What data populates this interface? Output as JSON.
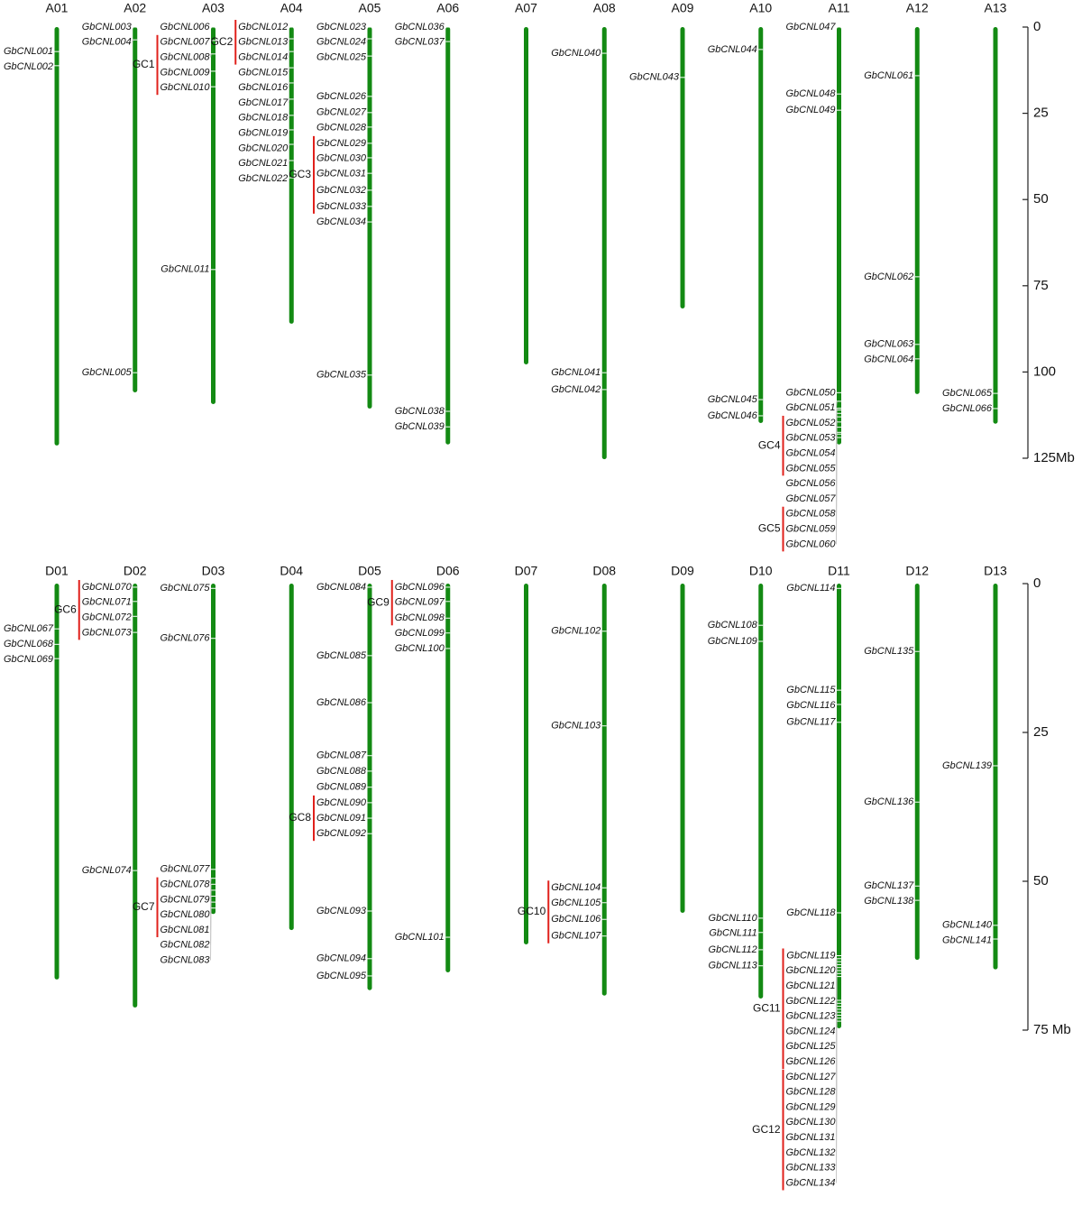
{
  "chart_data": [
    {
      "type": "chromosome-map",
      "ylim": [
        0,
        125
      ],
      "yticks": [
        0,
        25,
        50,
        75,
        100,
        {
          "value": 125,
          "label": "125Mb"
        }
      ],
      "chromosome_color": "#138a13",
      "cluster_color": "#e0201b",
      "chromosomes": [
        {
          "name": "A01",
          "length": 121.3,
          "genes": [
            {
              "name": "GbCNL001",
              "position": 7.1
            },
            {
              "name": "GbCNL002",
              "position": 11.2
            }
          ]
        },
        {
          "name": "A02",
          "length": 105.9,
          "genes": [
            {
              "name": "GbCNL003",
              "position": 0
            },
            {
              "name": "GbCNL004",
              "position": 3.7
            },
            {
              "name": "GbCNL005",
              "position": 100.2
            }
          ]
        },
        {
          "name": "A03",
          "length": 109.3,
          "genes": [
            {
              "name": "GbCNL006",
              "position": 0
            },
            {
              "name": "GbCNL007",
              "position": 3.9,
              "cluster": "GC1"
            },
            {
              "name": "GbCNL008",
              "position": 7.8,
              "cluster": "GC1"
            },
            {
              "name": "GbCNL009",
              "position": 12.8,
              "cluster": "GC1"
            },
            {
              "name": "GbCNL010",
              "position": 17.3,
              "cluster": "GC1"
            },
            {
              "name": "GbCNL011",
              "position": 70.3
            }
          ]
        },
        {
          "name": "A04",
          "length": 86,
          "genes": [
            {
              "name": "GbCNL012",
              "position": 0,
              "cluster": "GC2"
            },
            {
              "name": "GbCNL013",
              "position": 3.4,
              "cluster": "GC2"
            },
            {
              "name": "GbCNL014",
              "position": 7.1,
              "cluster": "GC2"
            },
            {
              "name": "GbCNL015",
              "position": 11.8
            },
            {
              "name": "GbCNL016",
              "position": 16.2
            },
            {
              "name": "GbCNL017",
              "position": 20.9
            },
            {
              "name": "GbCNL018",
              "position": 25.6
            },
            {
              "name": "GbCNL019",
              "position": 29.8
            },
            {
              "name": "GbCNL020",
              "position": 34
            },
            {
              "name": "GbCNL021",
              "position": 38.7
            },
            {
              "name": "GbCNL022",
              "position": 43.7
            }
          ]
        },
        {
          "name": "A05",
          "length": 110.6,
          "genes": [
            {
              "name": "GbCNL023",
              "position": 0
            },
            {
              "name": "GbCNL024",
              "position": 3.4
            },
            {
              "name": "GbCNL025",
              "position": 8.4
            },
            {
              "name": "GbCNL026",
              "position": 20.1
            },
            {
              "name": "GbCNL027",
              "position": 24.8
            },
            {
              "name": "GbCNL028",
              "position": 29
            },
            {
              "name": "GbCNL029",
              "position": 33.7,
              "cluster": "GC3"
            },
            {
              "name": "GbCNL030",
              "position": 37.9,
              "cluster": "GC3"
            },
            {
              "name": "GbCNL031",
              "position": 42.4,
              "cluster": "GC3"
            },
            {
              "name": "GbCNL032",
              "position": 47.3,
              "cluster": "GC3"
            },
            {
              "name": "GbCNL033",
              "position": 52,
              "cluster": "GC3"
            },
            {
              "name": "GbCNL034",
              "position": 56.5
            },
            {
              "name": "GbCNL035",
              "position": 100.9
            }
          ]
        },
        {
          "name": "A06",
          "length": 121,
          "genes": [
            {
              "name": "GbCNL036",
              "position": 0
            },
            {
              "name": "GbCNL037",
              "position": 4.2
            },
            {
              "name": "GbCNL038",
              "position": 111.4
            },
            {
              "name": "GbCNL039",
              "position": 115.9
            }
          ]
        },
        {
          "name": "A07",
          "length": 97.8,
          "genes": []
        },
        {
          "name": "A08",
          "length": 125.3,
          "genes": [
            {
              "name": "GbCNL040",
              "position": 7.6
            },
            {
              "name": "GbCNL041",
              "position": 100.2
            },
            {
              "name": "GbCNL042",
              "position": 105.1
            }
          ]
        },
        {
          "name": "A09",
          "length": 81.6,
          "genes": [
            {
              "name": "GbCNL043",
              "position": 14.6
            }
          ]
        },
        {
          "name": "A10",
          "length": 114.8,
          "genes": [
            {
              "name": "GbCNL044",
              "position": 6.5
            },
            {
              "name": "GbCNL045",
              "position": 108
            },
            {
              "name": "GbCNL046",
              "position": 112.7
            }
          ]
        },
        {
          "name": "A11",
          "length": 121,
          "genes": [
            {
              "name": "GbCNL047",
              "position": 0
            },
            {
              "name": "GbCNL048",
              "position": 19.4
            },
            {
              "name": "GbCNL049",
              "position": 24.1
            },
            {
              "name": "GbCNL050",
              "position": 106
            },
            {
              "name": "GbCNL051",
              "position": 108.5
            },
            {
              "name": "GbCNL052",
              "position": 110.5,
              "cluster": "GC4"
            },
            {
              "name": "GbCNL053",
              "position": 111,
              "cluster": "GC4"
            },
            {
              "name": "GbCNL054",
              "position": 112,
              "cluster": "GC4"
            },
            {
              "name": "GbCNL055",
              "position": 113,
              "cluster": "GC4"
            },
            {
              "name": "GbCNL056",
              "position": 114.5
            },
            {
              "name": "GbCNL057",
              "position": 116
            },
            {
              "name": "GbCNL058",
              "position": 117.5,
              "cluster": "GC5"
            },
            {
              "name": "GbCNL059",
              "position": 118,
              "cluster": "GC5"
            },
            {
              "name": "GbCNL060",
              "position": 119,
              "cluster": "GC5"
            }
          ]
        },
        {
          "name": "A12",
          "length": 106.4,
          "genes": [
            {
              "name": "GbCNL061",
              "position": 14.1
            },
            {
              "name": "GbCNL062",
              "position": 72.4
            },
            {
              "name": "GbCNL063",
              "position": 92
            },
            {
              "name": "GbCNL064",
              "position": 96.2
            }
          ]
        },
        {
          "name": "A13",
          "length": 115,
          "genes": [
            {
              "name": "GbCNL065",
              "position": 106.2
            },
            {
              "name": "GbCNL066",
              "position": 110.6
            }
          ]
        }
      ]
    },
    {
      "type": "chromosome-map",
      "ylim": [
        0,
        75
      ],
      "yticks": [
        0,
        25,
        50,
        {
          "value": 75,
          "label": "75 Mb"
        }
      ],
      "chromosome_color": "#138a13",
      "cluster_color": "#e0201b",
      "chromosomes": [
        {
          "name": "D01",
          "length": 66.5,
          "genes": [
            {
              "name": "GbCNL067",
              "position": 7.6
            },
            {
              "name": "GbCNL068",
              "position": 10.2
            },
            {
              "name": "GbCNL069",
              "position": 12.6
            }
          ]
        },
        {
          "name": "D02",
          "length": 71.2,
          "genes": [
            {
              "name": "GbCNL070",
              "position": 0.6,
              "cluster": "GC6"
            },
            {
              "name": "GbCNL071",
              "position": 3,
              "cluster": "GC6"
            },
            {
              "name": "GbCNL072",
              "position": 5.5,
              "cluster": "GC6"
            },
            {
              "name": "GbCNL073",
              "position": 8.2,
              "cluster": "GC6"
            },
            {
              "name": "GbCNL074",
              "position": 48.2
            }
          ]
        },
        {
          "name": "D03",
          "length": 55.5,
          "genes": [
            {
              "name": "GbCNL075",
              "position": 0.8
            },
            {
              "name": "GbCNL076",
              "position": 9.2
            },
            {
              "name": "GbCNL077",
              "position": 48
            },
            {
              "name": "GbCNL078",
              "position": 49.5,
              "cluster": "GC7"
            },
            {
              "name": "GbCNL079",
              "position": 50.5,
              "cluster": "GC7"
            },
            {
              "name": "GbCNL080",
              "position": 51.5,
              "cluster": "GC7"
            },
            {
              "name": "GbCNL081",
              "position": 52.5,
              "cluster": "GC7"
            },
            {
              "name": "GbCNL082",
              "position": 53.5
            },
            {
              "name": "GbCNL083",
              "position": 54.5
            }
          ]
        },
        {
          "name": "D04",
          "length": 58.2,
          "genes": []
        },
        {
          "name": "D05",
          "length": 68.3,
          "genes": [
            {
              "name": "GbCNL084",
              "position": 0.6
            },
            {
              "name": "GbCNL085",
              "position": 12.1
            },
            {
              "name": "GbCNL086",
              "position": 20
            },
            {
              "name": "GbCNL087",
              "position": 28.9
            },
            {
              "name": "GbCNL088",
              "position": 31.5
            },
            {
              "name": "GbCNL089",
              "position": 34.2
            },
            {
              "name": "GbCNL090",
              "position": 36.8,
              "cluster": "GC8"
            },
            {
              "name": "GbCNL091",
              "position": 39.4,
              "cluster": "GC8"
            },
            {
              "name": "GbCNL092",
              "position": 42,
              "cluster": "GC8"
            },
            {
              "name": "GbCNL093",
              "position": 55
            },
            {
              "name": "GbCNL094",
              "position": 63
            },
            {
              "name": "GbCNL095",
              "position": 65.9
            }
          ]
        },
        {
          "name": "D06",
          "length": 65.3,
          "genes": [
            {
              "name": "GbCNL096",
              "position": 0.6,
              "cluster": "GC9"
            },
            {
              "name": "GbCNL097",
              "position": 3,
              "cluster": "GC9"
            },
            {
              "name": "GbCNL098",
              "position": 5.8,
              "cluster": "GC9"
            },
            {
              "name": "GbCNL099",
              "position": 8.3
            },
            {
              "name": "GbCNL100",
              "position": 10.9
            },
            {
              "name": "GbCNL101",
              "position": 59.4
            }
          ]
        },
        {
          "name": "D07",
          "length": 60.6,
          "genes": []
        },
        {
          "name": "D08",
          "length": 69.2,
          "genes": [
            {
              "name": "GbCNL102",
              "position": 8
            },
            {
              "name": "GbCNL103",
              "position": 23.9
            },
            {
              "name": "GbCNL104",
              "position": 51.1,
              "cluster": "GC10"
            },
            {
              "name": "GbCNL105",
              "position": 53.6,
              "cluster": "GC10"
            },
            {
              "name": "GbCNL106",
              "position": 56.4,
              "cluster": "GC10"
            },
            {
              "name": "GbCNL107",
              "position": 59.2,
              "cluster": "GC10"
            }
          ]
        },
        {
          "name": "D09",
          "length": 55.3,
          "genes": []
        },
        {
          "name": "D10",
          "length": 69.7,
          "genes": [
            {
              "name": "GbCNL108",
              "position": 7
            },
            {
              "name": "GbCNL109",
              "position": 9.7
            },
            {
              "name": "GbCNL110",
              "position": 56.2
            },
            {
              "name": "GbCNL111",
              "position": 58.6
            },
            {
              "name": "GbCNL112",
              "position": 61.5
            },
            {
              "name": "GbCNL113",
              "position": 64.2
            }
          ]
        },
        {
          "name": "D11",
          "length": 74.7,
          "genes": [
            {
              "name": "GbCNL114",
              "position": 0.8
            },
            {
              "name": "GbCNL115",
              "position": 17.9
            },
            {
              "name": "GbCNL116",
              "position": 20.3
            },
            {
              "name": "GbCNL117",
              "position": 23.3
            },
            {
              "name": "GbCNL118",
              "position": 55.3
            },
            {
              "name": "GbCNL119",
              "position": 62.5,
              "cluster": "GC11"
            },
            {
              "name": "GbCNL120",
              "position": 63,
              "cluster": "GC11"
            },
            {
              "name": "GbCNL121",
              "position": 63.5,
              "cluster": "GC11"
            },
            {
              "name": "GbCNL122",
              "position": 64,
              "cluster": "GC11"
            },
            {
              "name": "GbCNL123",
              "position": 64.5,
              "cluster": "GC11"
            },
            {
              "name": "GbCNL124",
              "position": 65,
              "cluster": "GC11"
            },
            {
              "name": "GbCNL125",
              "position": 65.5,
              "cluster": "GC11"
            },
            {
              "name": "GbCNL126",
              "position": 66,
              "cluster": "GC11"
            },
            {
              "name": "GbCNL127",
              "position": 70,
              "cluster": "GC12"
            },
            {
              "name": "GbCNL128",
              "position": 70.5,
              "cluster": "GC12"
            },
            {
              "name": "GbCNL129",
              "position": 71,
              "cluster": "GC12"
            },
            {
              "name": "GbCNL130",
              "position": 71.5,
              "cluster": "GC12"
            },
            {
              "name": "GbCNL131",
              "position": 72,
              "cluster": "GC12"
            },
            {
              "name": "GbCNL132",
              "position": 72.5,
              "cluster": "GC12"
            },
            {
              "name": "GbCNL133",
              "position": 73,
              "cluster": "GC12"
            },
            {
              "name": "GbCNL134",
              "position": 73.5,
              "cluster": "GC12"
            }
          ]
        },
        {
          "name": "D12",
          "length": 63.2,
          "genes": [
            {
              "name": "GbCNL135",
              "position": 11.4
            },
            {
              "name": "GbCNL136",
              "position": 36.7
            },
            {
              "name": "GbCNL137",
              "position": 50.8
            },
            {
              "name": "GbCNL138",
              "position": 53.2
            }
          ]
        },
        {
          "name": "D13",
          "length": 64.8,
          "genes": [
            {
              "name": "GbCNL139",
              "position": 30.6
            },
            {
              "name": "GbCNL140",
              "position": 57.4
            },
            {
              "name": "GbCNL141",
              "position": 59.7
            }
          ]
        }
      ]
    }
  ]
}
